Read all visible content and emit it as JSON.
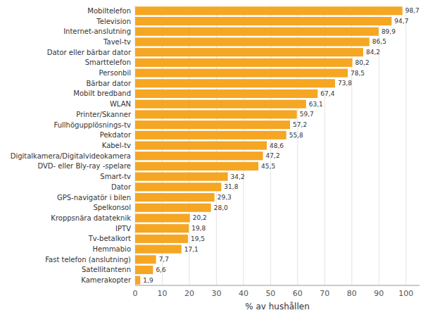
{
  "chart_data": {
    "type": "bar",
    "orientation": "horizontal",
    "xlabel": "% av hushållen",
    "categories": [
      "Kamerakopter",
      "Satellitantenn",
      "Fast telefon (anslutning)",
      "Hemmabio",
      "Tv-betalkort",
      "IPTV",
      "Kroppsnära datateknik",
      "Spelkonsol",
      "GPS-navigatör i bilen",
      "Dator",
      "Smart-tv",
      "DVD- eller Bly-ray -spelare",
      "Digitalkamera/Digitalvideokamera",
      "Kabel-tv",
      "Pekdator",
      "Fullhögupplösnings-tv",
      "Printer/Skanner",
      "WLAN",
      "Mobilt bredband",
      "Bärbar dator",
      "Personbil",
      "Smarttelefon",
      "Dator eller bärbar dator",
      "Tavel-tv",
      "Internet-anslutning",
      "Television",
      "Mobiltelefon"
    ],
    "values": [
      1.9,
      6.6,
      7.7,
      17.1,
      19.5,
      19.8,
      20.2,
      28.0,
      29.3,
      31.8,
      34.2,
      45.5,
      47.2,
      48.6,
      55.8,
      57.2,
      59.7,
      63.1,
      67.4,
      73.8,
      78.5,
      80.2,
      84.2,
      86.5,
      89.9,
      94.7,
      98.7
    ],
    "value_labels": [
      "1,9",
      "6,6",
      "7,7",
      "17,1",
      "19,5",
      "19,8",
      "20,2",
      "28,0",
      "29,3",
      "31,8",
      "34,2",
      "45,5",
      "47,2",
      "48,6",
      "55,8",
      "57,2",
      "59,7",
      "63,1",
      "67,4",
      "73,8",
      "78,5",
      "80,2",
      "84,2",
      "86,5",
      "89,9",
      "94,7",
      "98,7"
    ],
    "data_labels": true,
    "color": "#F5A623",
    "xlim": [
      0,
      105
    ],
    "xticks": [
      0,
      10,
      20,
      30,
      40,
      50,
      60,
      70,
      80,
      90,
      100
    ],
    "grid": true
  }
}
